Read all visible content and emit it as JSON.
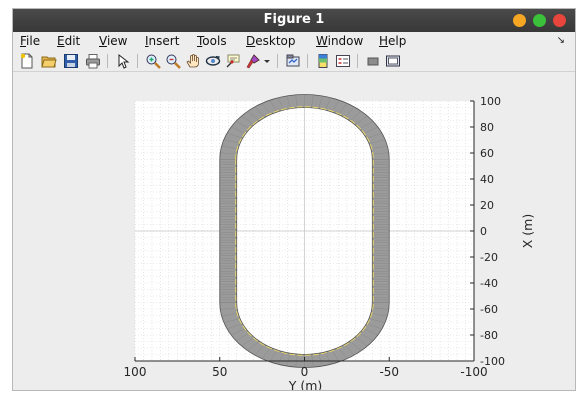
{
  "window": {
    "title": "Figure 1",
    "controls": {
      "minimize_color": "#f5a623",
      "maximize_color": "#3cc13b",
      "close_color": "#e8453c"
    }
  },
  "menubar": {
    "items": [
      {
        "label": "File",
        "key": "F"
      },
      {
        "label": "Edit",
        "key": "E"
      },
      {
        "label": "View",
        "key": "V"
      },
      {
        "label": "Insert",
        "key": "I"
      },
      {
        "label": "Tools",
        "key": "T"
      },
      {
        "label": "Desktop",
        "key": "D"
      },
      {
        "label": "Window",
        "key": "W"
      },
      {
        "label": "Help",
        "key": "H"
      }
    ]
  },
  "toolbar": {
    "icons": [
      "new-figure-icon",
      "open-file-icon",
      "save-icon",
      "print-icon",
      "edit-plot-arrow-icon",
      "zoom-in-icon",
      "zoom-out-icon",
      "pan-hand-icon",
      "rotate-3d-icon",
      "data-cursor-icon",
      "brush-icon",
      "brush-dropdown-icon",
      "link-plot-icon",
      "insert-colorbar-icon",
      "insert-legend-icon",
      "hide-plot-tools-icon",
      "show-plot-tools-icon"
    ]
  },
  "chart_data": {
    "type": "line",
    "description_series": [
      {
        "name": "",
        "kind": "track-surface",
        "color": "#9b9b9b"
      },
      {
        "name": "",
        "kind": "lane-edge",
        "color": "#e6d46a"
      }
    ],
    "track": {
      "straight_half_length_x": 55,
      "turn_radius_center": 45,
      "width": 10,
      "x_range_straight": [
        -55,
        55
      ],
      "y_range": [
        -55,
        55
      ]
    },
    "xlabel": "Y (m)",
    "ylabel": "X (m)",
    "x_axis_reversed": true,
    "xlim": [
      100,
      -100
    ],
    "ylim": [
      -100,
      100
    ],
    "xticks": [
      "100",
      "50",
      "0",
      "-50",
      "-100"
    ],
    "yticks": [
      "100",
      "80",
      "60",
      "40",
      "20",
      "0",
      "-20",
      "-40",
      "-60",
      "-80",
      "-100"
    ],
    "ytick_values": [
      100,
      80,
      60,
      40,
      20,
      0,
      -20,
      -40,
      -60,
      -80,
      -100
    ],
    "xtick_values": [
      100,
      50,
      0,
      -50,
      -100
    ],
    "y_axis_location": "right",
    "grid": "minor-dotted",
    "axis_color": "#262626"
  }
}
